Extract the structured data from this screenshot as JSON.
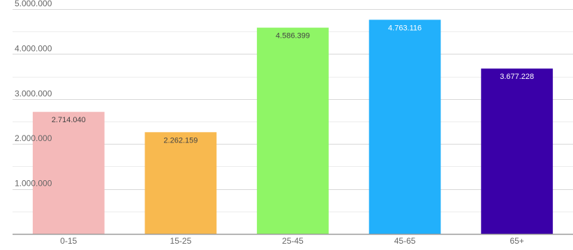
{
  "chart_data": {
    "type": "bar",
    "title": "",
    "xlabel": "",
    "ylabel": "",
    "categories": [
      "0-15",
      "15-25",
      "25-45",
      "45-65",
      "65+"
    ],
    "values": [
      2714040,
      2262159,
      4586399,
      4763116,
      3677228
    ],
    "value_labels": [
      "2.714.040",
      "2.262.159",
      "4.586.399",
      "4.763.116",
      "3.677.228"
    ],
    "colors": [
      "#f4b9b9",
      "#f8b94f",
      "#8ff566",
      "#22b0fb",
      "#3a00a8"
    ],
    "ylim": [
      0,
      5000000
    ],
    "yticks": [
      1000000,
      2000000,
      3000000,
      4000000,
      5000000
    ],
    "ytick_labels": [
      "1.000.000",
      "2.000.000",
      "3.000.000",
      "4.000.000",
      "5.000.000"
    ],
    "grid": true,
    "legend": "none"
  }
}
